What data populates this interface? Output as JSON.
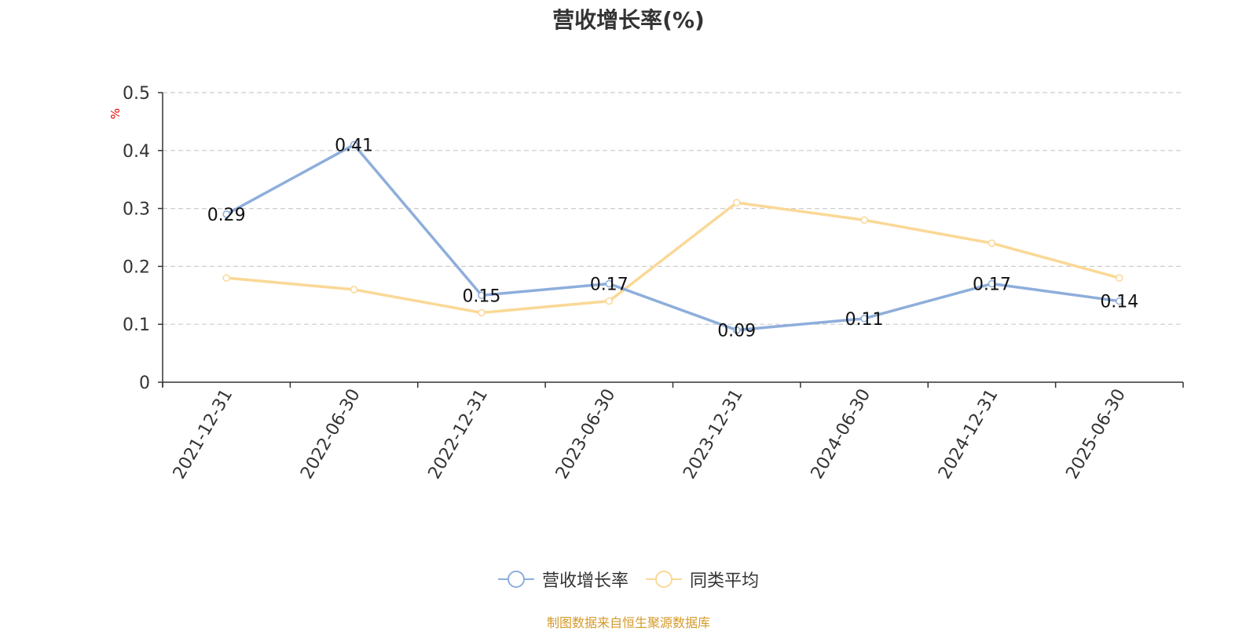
{
  "title": "营收增长率(%)",
  "unit_label": "%",
  "source_note": "制图数据来自恒生聚源数据库",
  "colors": {
    "series_1": "#8eaedb",
    "series_2": "#fad896",
    "grid": "#cccccc",
    "axis": "#333333"
  },
  "chart_data": {
    "type": "line",
    "categories": [
      "2021-12-31",
      "2022-06-30",
      "2022-12-31",
      "2023-06-30",
      "2023-12-31",
      "2024-06-30",
      "2024-12-31",
      "2025-06-30"
    ],
    "series": [
      {
        "name": "营收增长率",
        "values": [
          0.29,
          0.41,
          0.15,
          0.17,
          0.09,
          0.11,
          0.17,
          0.14
        ],
        "show_labels": true
      },
      {
        "name": "同类平均",
        "values": [
          0.18,
          0.16,
          0.12,
          0.14,
          0.31,
          0.28,
          0.24,
          0.18
        ],
        "show_labels": false
      }
    ],
    "ylim": [
      0,
      0.5
    ],
    "yticks": [
      0,
      0.1,
      0.2,
      0.3,
      0.4,
      0.5
    ],
    "ylabel": "%",
    "grid": true,
    "legend_position": "bottom"
  }
}
